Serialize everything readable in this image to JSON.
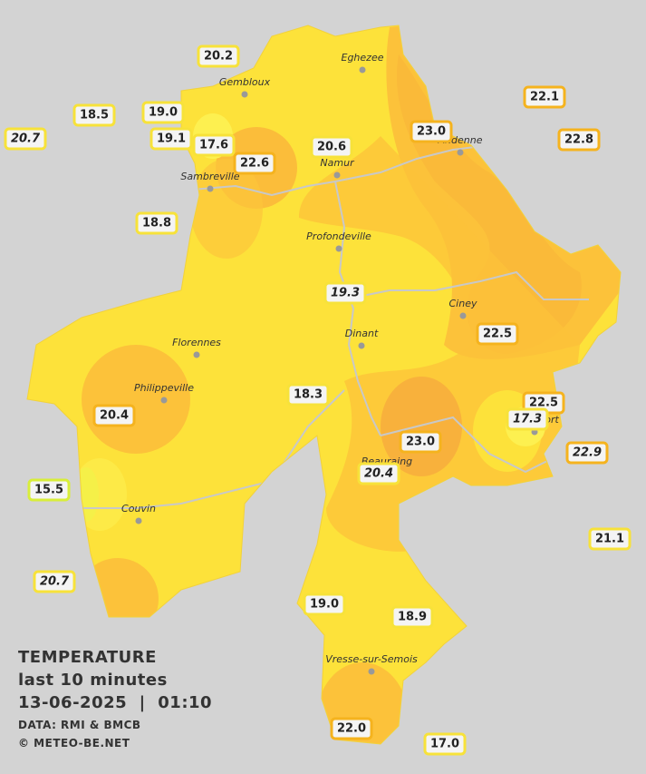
{
  "title": "TEMPERATURE",
  "subtitle": "last 10 minutes",
  "timestamp": "13-06-2025  |  01:10",
  "source": "DATA: RMI & BMCB",
  "credit": "© METEO-BE.NET",
  "cities": [
    "Eghezee",
    "Gembloux",
    "Andenne",
    "Namur",
    "Sambreville",
    "Profondeville",
    "Ciney",
    "Florennes",
    "Dinant",
    "Philippeville",
    "Rochefort",
    "Beauraing",
    "Couvin",
    "Vresse-sur-Semois"
  ],
  "stations": [
    "20.2",
    "18.5",
    "19.0",
    "20.7",
    "19.1",
    "17.6",
    "22.6",
    "20.6",
    "23.0",
    "22.1",
    "22.8",
    "18.8",
    "19.3",
    "22.5",
    "18.3",
    "20.4",
    "22.5",
    "17.3",
    "23.0",
    "22.9",
    "20.4",
    "15.5",
    "21.1",
    "20.7",
    "19.0",
    "18.9",
    "22.0",
    "17.0"
  ]
}
